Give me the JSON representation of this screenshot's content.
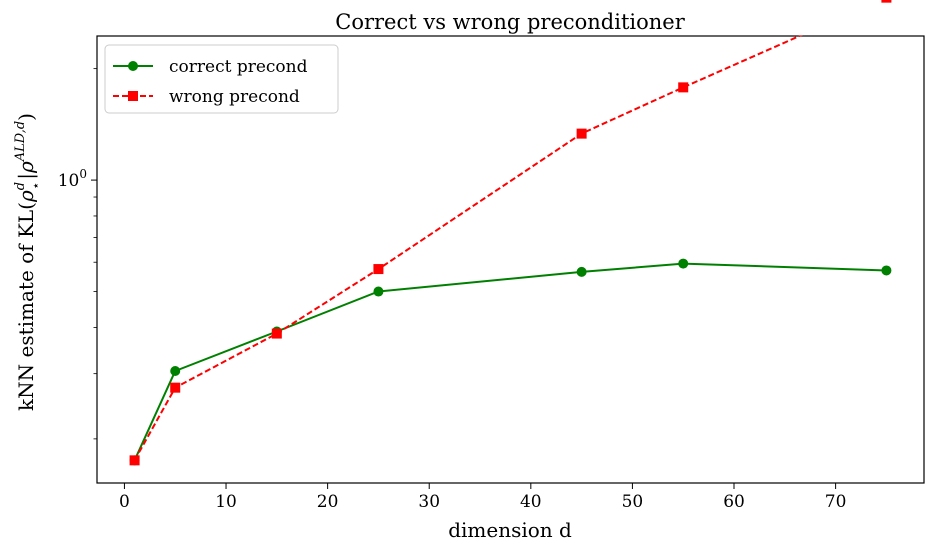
{
  "chart_data": {
    "type": "line",
    "title": "Correct vs wrong preconditioner",
    "xlabel": "dimension d",
    "ylabel": {
      "prefix": "kNN estimate of KL(",
      "rho": "ρ",
      "sup_d": "d",
      "star": "⋆",
      "sep": "|",
      "sup_ald": "ALD,d",
      "suffix": ")"
    },
    "x_scale": "linear",
    "y_scale": "log",
    "xlim": [
      -2.7,
      78.7
    ],
    "ylim": [
      0.152,
      2.45
    ],
    "xticks": [
      0,
      10,
      20,
      30,
      40,
      50,
      60,
      70
    ],
    "yticks": [
      {
        "value": 1.0,
        "base": "10",
        "exp": "0"
      }
    ],
    "legend_position": "top-left",
    "series": [
      {
        "name": "correct precond",
        "color": "#008000",
        "marker": "circle",
        "linestyle": "solid",
        "x": [
          1,
          5,
          15,
          25,
          45,
          55,
          75
        ],
        "y": [
          0.175,
          0.305,
          0.39,
          0.5,
          0.565,
          0.595,
          0.57
        ]
      },
      {
        "name": "wrong precond",
        "color": "#ff0000",
        "marker": "square",
        "linestyle": "dashed",
        "x": [
          1,
          5,
          15,
          25,
          45,
          55,
          75
        ],
        "y": [
          0.175,
          0.275,
          0.385,
          0.575,
          1.335,
          1.78,
          3.11
        ]
      }
    ]
  }
}
